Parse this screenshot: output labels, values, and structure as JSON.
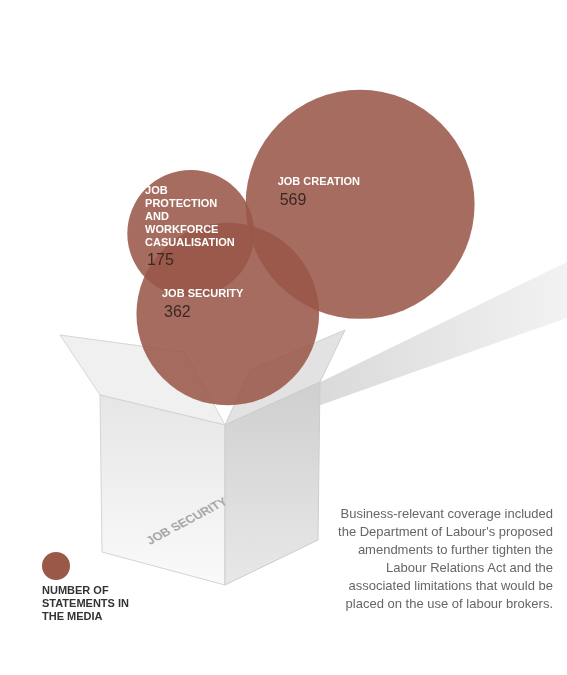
{
  "chart_data": {
    "type": "bubble",
    "categories": [
      "JOB PROTECTION AND WORKFORCE CASUALISATION",
      "JOB CREATION",
      "JOB SECURITY"
    ],
    "series": [
      {
        "name": "NUMBER OF STATEMENTS IN THE MEDIA",
        "color": "#9a5849",
        "values": [
          175,
          569,
          362
        ]
      }
    ],
    "data_labels": true,
    "tick_labels": false,
    "legend": "lower left",
    "annotation": "Business-relevant coverage included the Department of Labour's proposed amendments to further tighten the Labour Relations Act and the associated limitations that would be placed on the use of labour brokers.",
    "box_label": "JOB SECURITY"
  }
}
